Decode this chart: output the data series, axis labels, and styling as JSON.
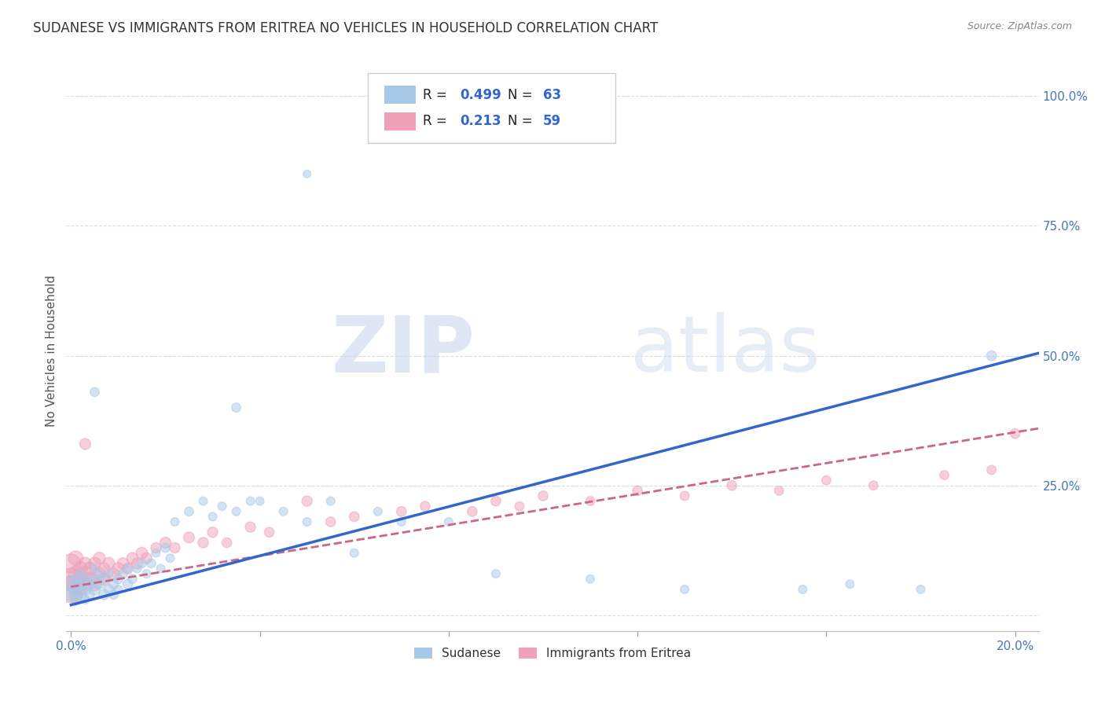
{
  "title": "SUDANESE VS IMMIGRANTS FROM ERITREA NO VEHICLES IN HOUSEHOLD CORRELATION CHART",
  "source": "Source: ZipAtlas.com",
  "ylabel": "No Vehicles in Household",
  "xlim": [
    -0.001,
    0.205
  ],
  "ylim": [
    -0.03,
    1.05
  ],
  "grid_color": "#dddddd",
  "legend_blue_label": "Sudanese",
  "legend_pink_label": "Immigrants from Eritrea",
  "R_blue": "0.499",
  "N_blue": "63",
  "R_pink": "0.213",
  "N_pink": "59",
  "blue_color": "#A8C8E8",
  "pink_color": "#F0A0B8",
  "trendline_blue_color": "#3366CC",
  "trendline_pink_color": "#CC6688",
  "blue_trend_x": [
    0.0,
    0.205
  ],
  "blue_trend_y": [
    0.02,
    0.505
  ],
  "pink_trend_x": [
    0.0,
    0.205
  ],
  "pink_trend_y": [
    0.055,
    0.36
  ],
  "blue_scatter_x": [
    0.0,
    0.0,
    0.001,
    0.001,
    0.001,
    0.002,
    0.002,
    0.002,
    0.003,
    0.003,
    0.003,
    0.004,
    0.004,
    0.005,
    0.005,
    0.005,
    0.006,
    0.006,
    0.007,
    0.007,
    0.008,
    0.008,
    0.009,
    0.009,
    0.01,
    0.01,
    0.011,
    0.012,
    0.012,
    0.013,
    0.014,
    0.015,
    0.016,
    0.017,
    0.018,
    0.019,
    0.02,
    0.021,
    0.022,
    0.025,
    0.028,
    0.03,
    0.032,
    0.035,
    0.038,
    0.04,
    0.045,
    0.05,
    0.055,
    0.06,
    0.065,
    0.07,
    0.08,
    0.09,
    0.11,
    0.13,
    0.155,
    0.165,
    0.18,
    0.195,
    0.005,
    0.035,
    0.05
  ],
  "blue_scatter_y": [
    0.06,
    0.04,
    0.05,
    0.03,
    0.07,
    0.04,
    0.06,
    0.08,
    0.05,
    0.07,
    0.03,
    0.06,
    0.04,
    0.05,
    0.07,
    0.09,
    0.06,
    0.08,
    0.04,
    0.07,
    0.05,
    0.08,
    0.04,
    0.06,
    0.07,
    0.05,
    0.08,
    0.06,
    0.09,
    0.07,
    0.09,
    0.1,
    0.08,
    0.1,
    0.12,
    0.09,
    0.13,
    0.11,
    0.18,
    0.2,
    0.22,
    0.19,
    0.21,
    0.2,
    0.22,
    0.22,
    0.2,
    0.18,
    0.22,
    0.12,
    0.2,
    0.18,
    0.18,
    0.08,
    0.07,
    0.05,
    0.05,
    0.06,
    0.05,
    0.5,
    0.43,
    0.4,
    0.85
  ],
  "blue_scatter_s": [
    200,
    150,
    130,
    100,
    80,
    120,
    90,
    70,
    110,
    80,
    60,
    90,
    70,
    100,
    80,
    60,
    80,
    60,
    90,
    70,
    80,
    60,
    70,
    80,
    70,
    60,
    70,
    80,
    60,
    70,
    60,
    70,
    60,
    70,
    60,
    60,
    70,
    60,
    60,
    70,
    60,
    60,
    60,
    60,
    60,
    60,
    60,
    60,
    60,
    60,
    60,
    60,
    60,
    60,
    60,
    60,
    60,
    60,
    60,
    80,
    70,
    70,
    50
  ],
  "pink_scatter_x": [
    0.0,
    0.0,
    0.0,
    0.001,
    0.001,
    0.001,
    0.001,
    0.002,
    0.002,
    0.002,
    0.003,
    0.003,
    0.003,
    0.004,
    0.004,
    0.005,
    0.005,
    0.006,
    0.006,
    0.007,
    0.007,
    0.008,
    0.009,
    0.01,
    0.011,
    0.012,
    0.013,
    0.014,
    0.015,
    0.016,
    0.018,
    0.02,
    0.022,
    0.025,
    0.028,
    0.03,
    0.033,
    0.038,
    0.042,
    0.05,
    0.055,
    0.06,
    0.07,
    0.075,
    0.085,
    0.09,
    0.095,
    0.1,
    0.11,
    0.12,
    0.13,
    0.14,
    0.15,
    0.16,
    0.17,
    0.185,
    0.195,
    0.2,
    0.003
  ],
  "pink_scatter_y": [
    0.05,
    0.07,
    0.1,
    0.06,
    0.08,
    0.11,
    0.04,
    0.07,
    0.09,
    0.05,
    0.08,
    0.06,
    0.1,
    0.07,
    0.09,
    0.06,
    0.1,
    0.08,
    0.11,
    0.07,
    0.09,
    0.1,
    0.08,
    0.09,
    0.1,
    0.09,
    0.11,
    0.1,
    0.12,
    0.11,
    0.13,
    0.14,
    0.13,
    0.15,
    0.14,
    0.16,
    0.14,
    0.17,
    0.16,
    0.22,
    0.18,
    0.19,
    0.2,
    0.21,
    0.2,
    0.22,
    0.21,
    0.23,
    0.22,
    0.24,
    0.23,
    0.25,
    0.24,
    0.26,
    0.25,
    0.27,
    0.28,
    0.35,
    0.33
  ],
  "pink_scatter_s": [
    600,
    400,
    300,
    250,
    200,
    180,
    150,
    200,
    160,
    130,
    180,
    150,
    130,
    160,
    140,
    150,
    130,
    140,
    120,
    130,
    110,
    120,
    110,
    120,
    110,
    100,
    110,
    100,
    110,
    100,
    90,
    100,
    90,
    100,
    90,
    90,
    80,
    90,
    80,
    90,
    80,
    80,
    80,
    80,
    80,
    80,
    70,
    80,
    70,
    80,
    70,
    80,
    70,
    70,
    70,
    70,
    70,
    80,
    100
  ]
}
